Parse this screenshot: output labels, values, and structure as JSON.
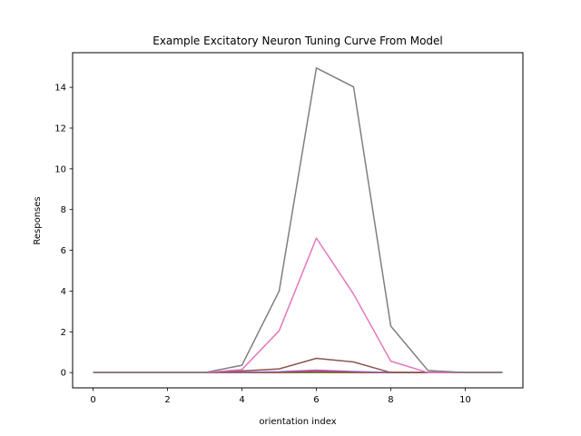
{
  "chart_data": {
    "type": "line",
    "title": "Example Excitatory Neuron Tuning Curve From Model",
    "xlabel": "orientation index",
    "ylabel": "Responses",
    "x": [
      0,
      1,
      2,
      3,
      4,
      5,
      6,
      7,
      8,
      9,
      10,
      11
    ],
    "xlim": [
      -0.55,
      11.55
    ],
    "ylim": [
      -0.75,
      15.7
    ],
    "xticks": [
      0,
      2,
      4,
      6,
      8,
      10
    ],
    "yticks": [
      0,
      2,
      4,
      6,
      8,
      10,
      12,
      14
    ],
    "grid": false,
    "legend": "none",
    "series": [
      {
        "color": "#1f77b4",
        "values": [
          0,
          0,
          0,
          0,
          0,
          0.01,
          0.03,
          0.01,
          0,
          0,
          0,
          0
        ]
      },
      {
        "color": "#ff7f0e",
        "values": [
          0,
          0,
          0,
          0,
          0,
          0,
          0.02,
          0,
          0,
          0,
          0,
          0
        ]
      },
      {
        "color": "#2ca02c",
        "values": [
          0,
          0,
          0,
          0,
          0,
          0,
          0,
          0,
          0,
          0,
          0,
          0
        ]
      },
      {
        "color": "#d62728",
        "values": [
          0,
          0,
          0,
          0,
          0.01,
          0.02,
          0.04,
          0.02,
          0,
          0,
          0,
          0
        ]
      },
      {
        "color": "#9467bd",
        "values": [
          0,
          0,
          0,
          0,
          0.02,
          0.04,
          0.12,
          0.05,
          0,
          0,
          0,
          0
        ]
      },
      {
        "color": "#8c564b",
        "values": [
          0,
          0,
          0,
          0,
          0.08,
          0.18,
          0.7,
          0.52,
          0,
          0,
          0,
          0
        ]
      },
      {
        "color": "#e377c2",
        "values": [
          0,
          0,
          0,
          0,
          0.15,
          2.05,
          6.6,
          3.85,
          0.56,
          0,
          0,
          0
        ]
      },
      {
        "color": "#7f7f7f",
        "values": [
          0,
          0,
          0,
          0,
          0.36,
          4.0,
          14.95,
          14.02,
          2.28,
          0.1,
          0,
          0
        ]
      }
    ]
  }
}
